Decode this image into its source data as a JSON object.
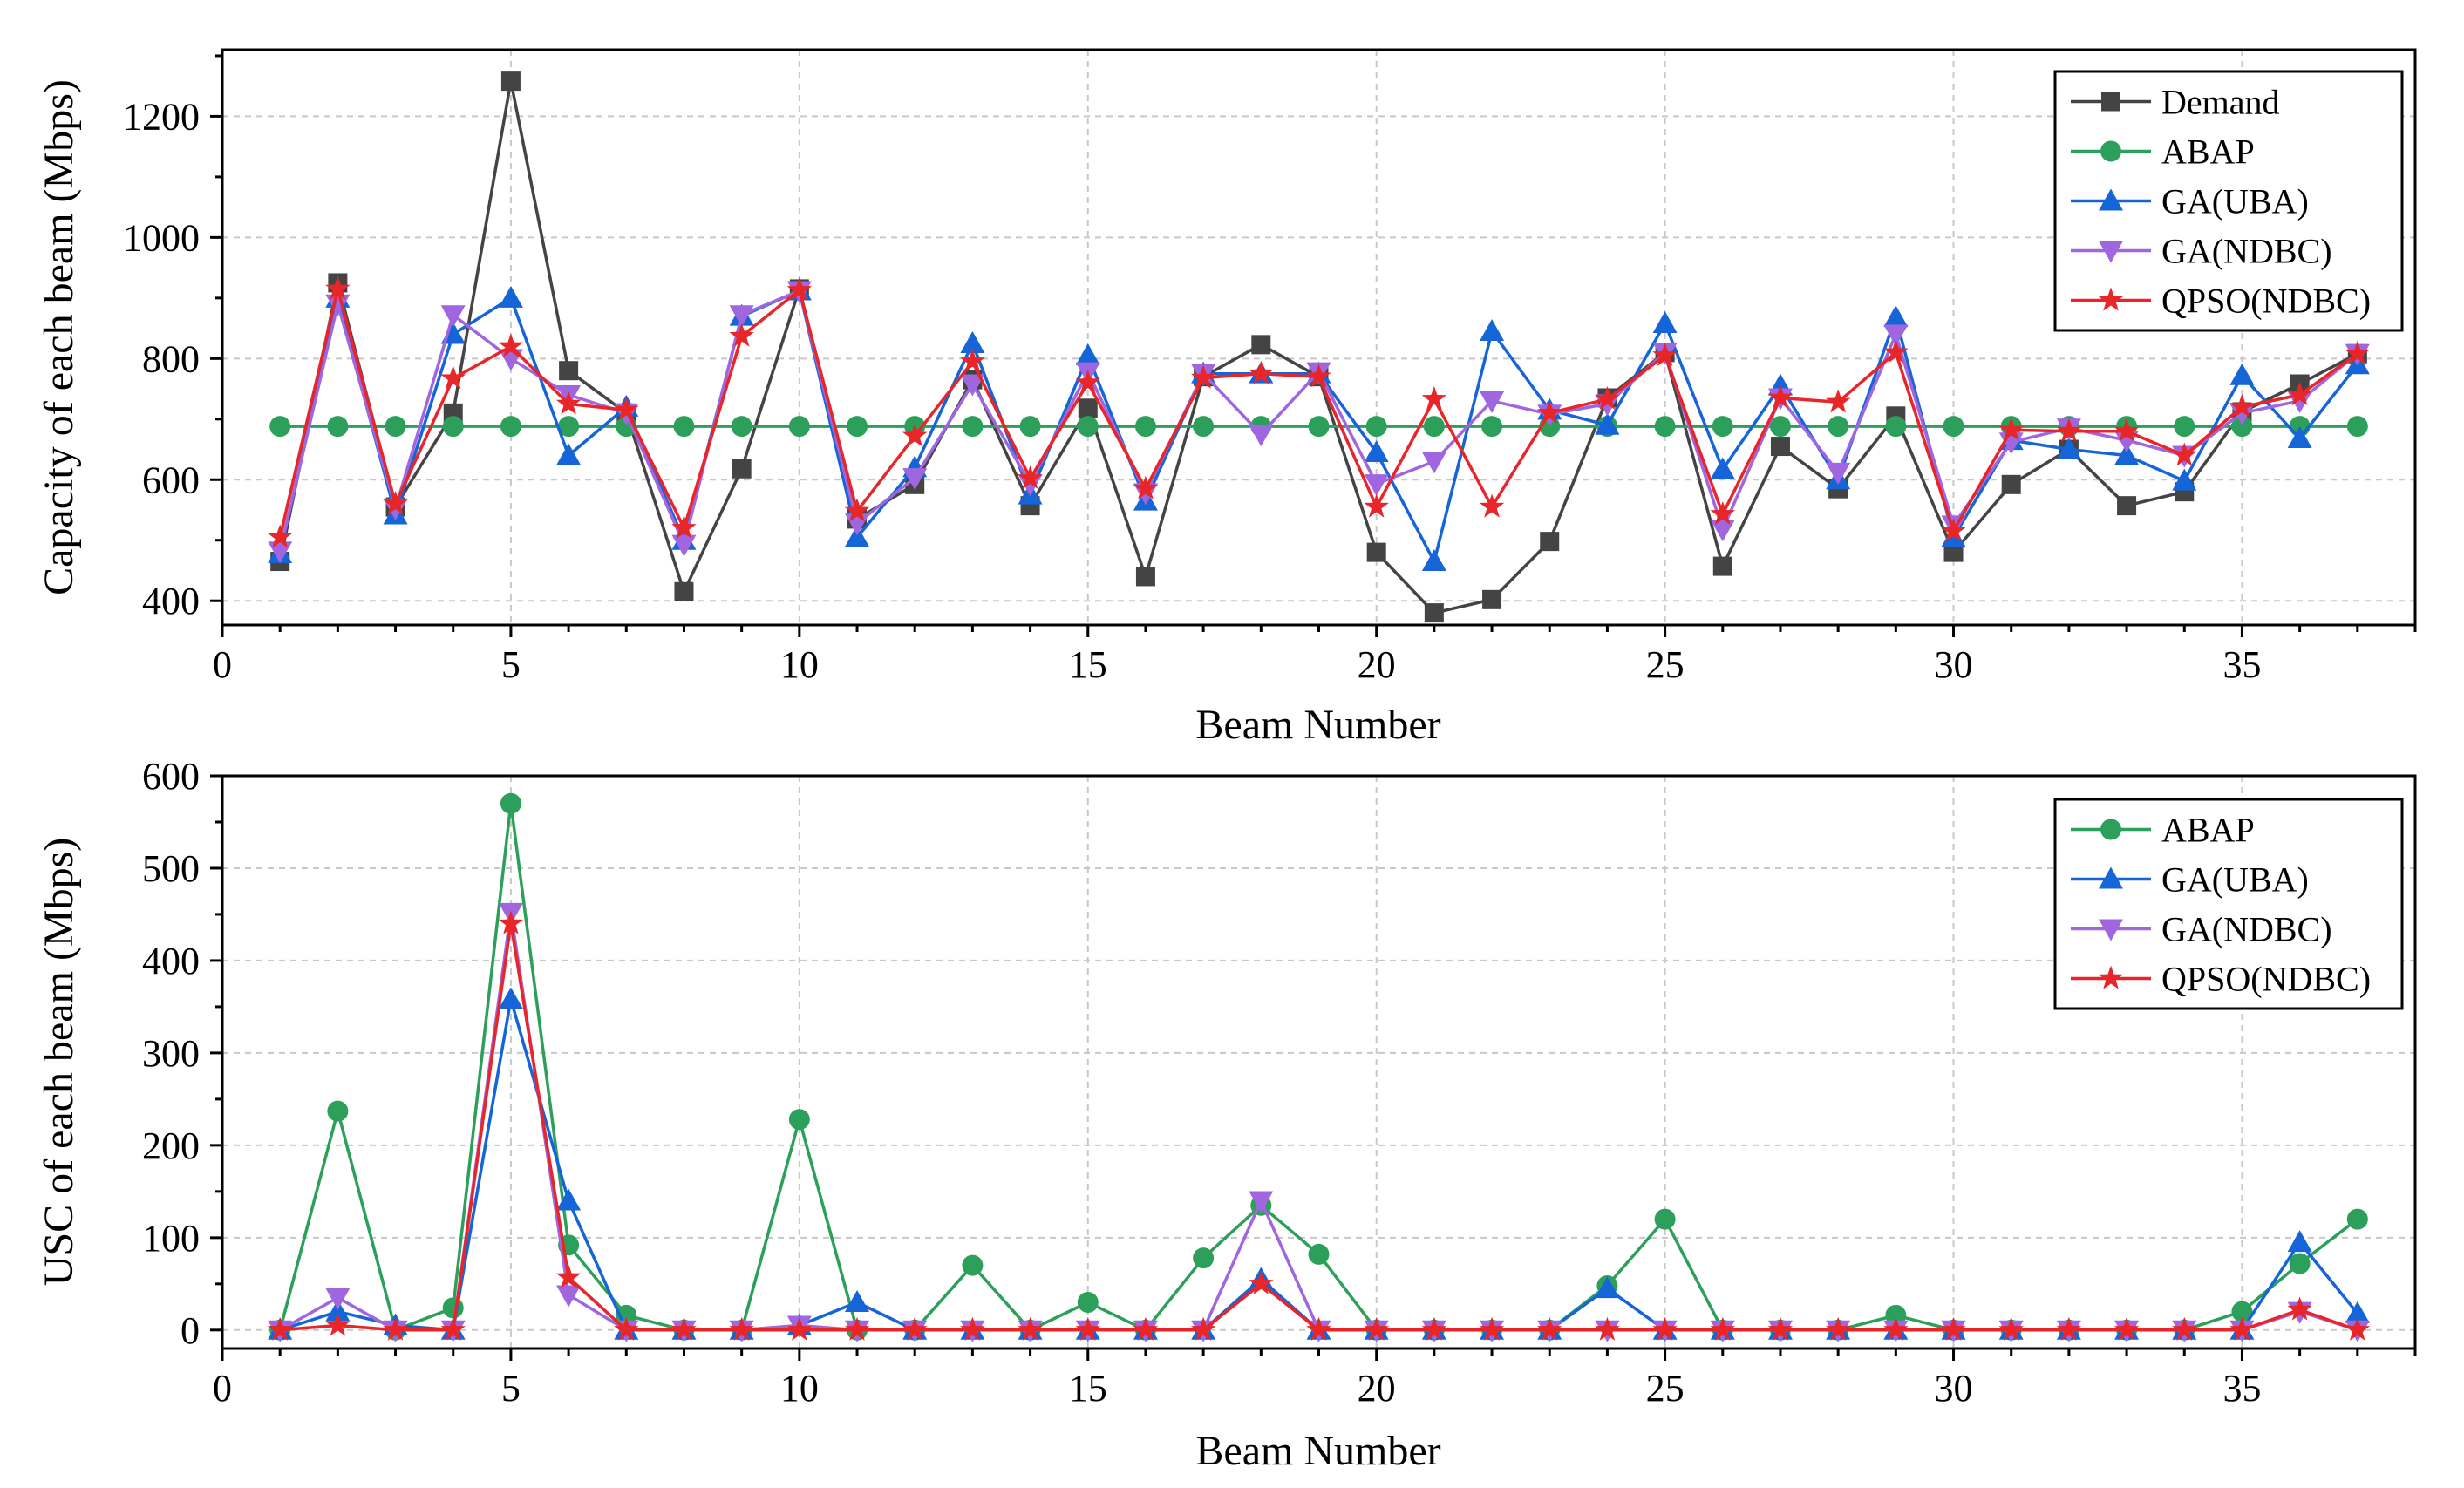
{
  "chart_data": [
    {
      "type": "line",
      "id": "capacity",
      "title": "",
      "xlabel": "Beam Number",
      "ylabel": "Capacity of each beam (Mbps)",
      "xlim": [
        0,
        38
      ],
      "ylim": [
        360,
        1310
      ],
      "x_ticks": [
        0,
        5,
        10,
        15,
        20,
        25,
        30,
        35
      ],
      "y_ticks": [
        400,
        600,
        800,
        1000,
        1200
      ],
      "grid": true,
      "legend_position": "top-right",
      "x": [
        1,
        2,
        3,
        4,
        5,
        6,
        7,
        8,
        9,
        10,
        11,
        12,
        13,
        14,
        15,
        16,
        17,
        18,
        19,
        20,
        21,
        22,
        23,
        24,
        25,
        26,
        27,
        28,
        29,
        30,
        31,
        32,
        33,
        34,
        35,
        36,
        37
      ],
      "series": [
        {
          "name": "Demand",
          "color": "#444444",
          "marker": "square",
          "values": [
            465,
            925,
            555,
            710,
            1258,
            780,
            710,
            415,
            618,
            915,
            535,
            592,
            765,
            557,
            718,
            440,
            770,
            823,
            770,
            480,
            380,
            402,
            498,
            735,
            810,
            457,
            655,
            585,
            705,
            480,
            592,
            650,
            557,
            580,
            712,
            758,
            808
          ]
        },
        {
          "name": "ABAP",
          "color": "#2ca05a",
          "marker": "circle",
          "values": [
            688,
            688,
            688,
            688,
            688,
            688,
            688,
            688,
            688,
            688,
            688,
            688,
            688,
            688,
            688,
            688,
            688,
            688,
            688,
            688,
            688,
            688,
            688,
            688,
            688,
            688,
            688,
            688,
            688,
            688,
            688,
            688,
            688,
            688,
            688,
            688,
            688
          ]
        },
        {
          "name": "GA(UBA)",
          "color": "#1565d8",
          "marker": "triangle-up",
          "values": [
            478,
            900,
            542,
            840,
            900,
            640,
            720,
            500,
            870,
            912,
            505,
            620,
            825,
            575,
            805,
            565,
            775,
            775,
            775,
            645,
            465,
            845,
            715,
            690,
            858,
            617,
            755,
            600,
            868,
            505,
            665,
            650,
            640,
            598,
            772,
            668,
            790
          ]
        },
        {
          "name": "GA(NDBC)",
          "color": "#a066e0",
          "marker": "triangle-down",
          "values": [
            482,
            890,
            553,
            872,
            800,
            740,
            710,
            493,
            872,
            912,
            528,
            603,
            758,
            593,
            778,
            578,
            775,
            675,
            778,
            593,
            630,
            730,
            708,
            725,
            810,
            518,
            735,
            612,
            840,
            525,
            662,
            685,
            665,
            640,
            710,
            730,
            808
          ]
        },
        {
          "name": "QPSO(NDBC)",
          "color": "#e8262a",
          "marker": "star",
          "values": [
            505,
            915,
            560,
            767,
            820,
            725,
            715,
            520,
            837,
            913,
            548,
            672,
            795,
            602,
            760,
            585,
            768,
            775,
            770,
            555,
            733,
            555,
            710,
            733,
            805,
            543,
            735,
            728,
            810,
            515,
            682,
            680,
            680,
            640,
            720,
            740,
            808
          ]
        }
      ]
    },
    {
      "type": "line",
      "id": "usc",
      "title": "",
      "xlabel": "Beam Number",
      "ylabel": "USC of each beam (Mbps)",
      "xlim": [
        0,
        38
      ],
      "ylim": [
        -20,
        600
      ],
      "x_ticks": [
        0,
        5,
        10,
        15,
        20,
        25,
        30,
        35
      ],
      "y_ticks": [
        0,
        100,
        200,
        300,
        400,
        500,
        600
      ],
      "grid": true,
      "legend_position": "top-right",
      "x": [
        1,
        2,
        3,
        4,
        5,
        6,
        7,
        8,
        9,
        10,
        11,
        12,
        13,
        14,
        15,
        16,
        17,
        18,
        19,
        20,
        21,
        22,
        23,
        24,
        25,
        26,
        27,
        28,
        29,
        30,
        31,
        32,
        33,
        34,
        35,
        36,
        37
      ],
      "series": [
        {
          "name": "ABAP",
          "color": "#2ca05a",
          "marker": "circle",
          "values": [
            0,
            237,
            0,
            24,
            570,
            92,
            16,
            0,
            0,
            228,
            0,
            0,
            70,
            0,
            30,
            0,
            78,
            135,
            82,
            0,
            0,
            0,
            0,
            48,
            120,
            0,
            0,
            0,
            16,
            0,
            0,
            0,
            0,
            0,
            20,
            72,
            120
          ]
        },
        {
          "name": "GA(UBA)",
          "color": "#1565d8",
          "marker": "triangle-up",
          "values": [
            0,
            20,
            5,
            0,
            358,
            140,
            0,
            0,
            0,
            5,
            30,
            0,
            0,
            0,
            0,
            0,
            0,
            55,
            0,
            0,
            0,
            0,
            0,
            45,
            0,
            0,
            0,
            0,
            0,
            0,
            0,
            0,
            0,
            0,
            0,
            95,
            18
          ]
        },
        {
          "name": "GA(NDBC)",
          "color": "#a066e0",
          "marker": "triangle-down",
          "values": [
            0,
            35,
            0,
            0,
            452,
            38,
            0,
            0,
            0,
            5,
            0,
            0,
            0,
            0,
            0,
            0,
            0,
            140,
            0,
            0,
            0,
            0,
            0,
            0,
            0,
            0,
            0,
            0,
            0,
            0,
            0,
            0,
            0,
            0,
            0,
            20,
            0
          ]
        },
        {
          "name": "QPSO(NDBC)",
          "color": "#e8262a",
          "marker": "star",
          "values": [
            0,
            5,
            0,
            0,
            440,
            57,
            0,
            0,
            0,
            0,
            0,
            0,
            0,
            0,
            0,
            0,
            0,
            50,
            0,
            0,
            0,
            0,
            0,
            0,
            0,
            0,
            0,
            0,
            0,
            0,
            0,
            0,
            0,
            0,
            0,
            22,
            0
          ]
        }
      ]
    }
  ]
}
